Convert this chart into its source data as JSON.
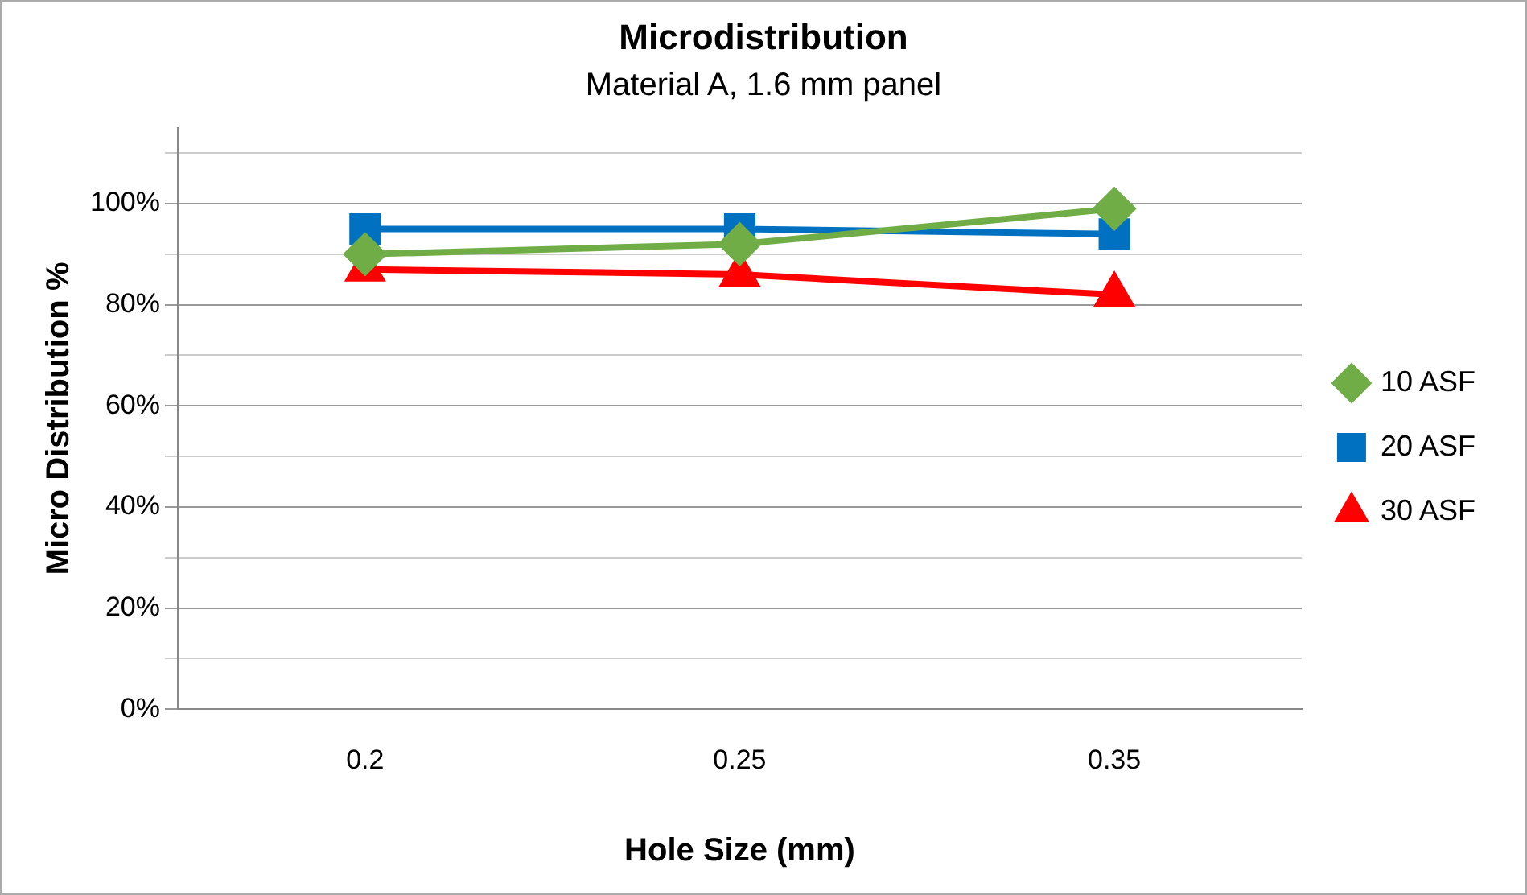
{
  "chart_data": {
    "type": "line",
    "title": "Microdistribution",
    "subtitle": "Material A, 1.6 mm panel",
    "xlabel": "Hole Size (mm)",
    "ylabel": "Micro Distribution %",
    "categories": [
      "0.2",
      "0.25",
      "0.35"
    ],
    "series": [
      {
        "name": "10 ASF",
        "color": "#70ad47",
        "values": [
          90,
          92,
          99
        ],
        "marker": "diamond"
      },
      {
        "name": "20 ASF",
        "color": "#0070c0",
        "values": [
          95,
          95,
          94
        ],
        "marker": "square"
      },
      {
        "name": "30 ASF",
        "color": "#ff0000",
        "values": [
          87,
          86,
          82
        ],
        "marker": "triangle"
      }
    ],
    "ylim": [
      0,
      115
    ],
    "yticks": [
      {
        "value": 0,
        "label": "0%"
      },
      {
        "value": 10,
        "label": null
      },
      {
        "value": 20,
        "label": "20%"
      },
      {
        "value": 30,
        "label": null
      },
      {
        "value": 40,
        "label": "40%"
      },
      {
        "value": 50,
        "label": null
      },
      {
        "value": 60,
        "label": "60%"
      },
      {
        "value": 70,
        "label": null
      },
      {
        "value": 80,
        "label": "80%"
      },
      {
        "value": 90,
        "label": null
      },
      {
        "value": 100,
        "label": "100%"
      },
      {
        "value": 110,
        "label": null
      }
    ],
    "grid": "y",
    "legend": "right",
    "line_style": "solid"
  }
}
